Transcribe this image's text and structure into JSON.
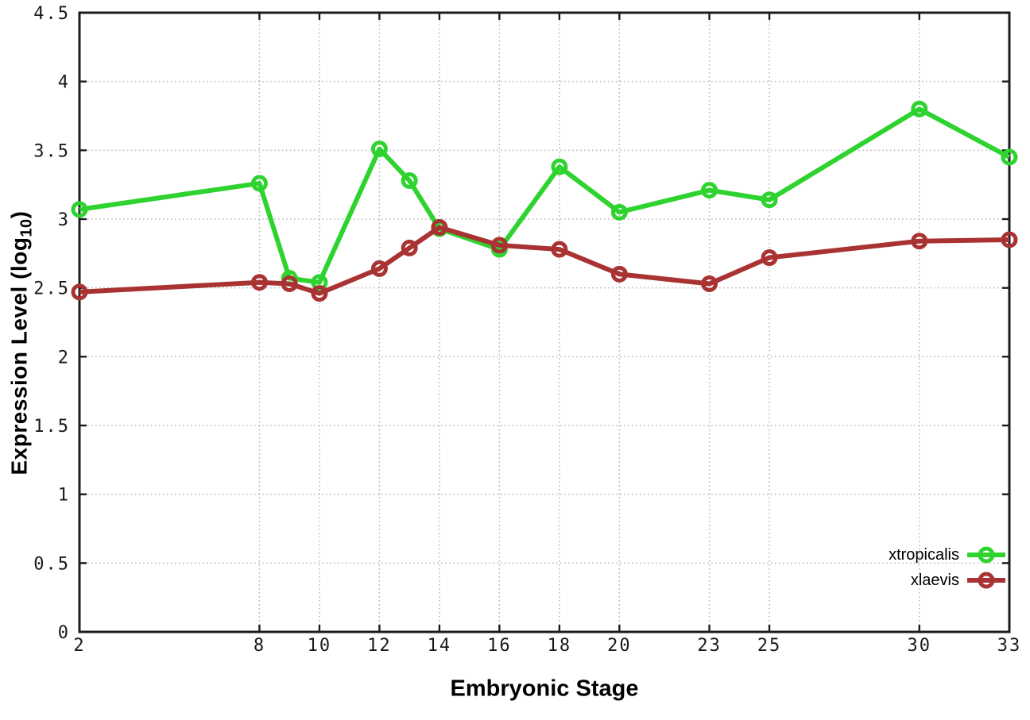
{
  "chart_data": {
    "type": "line",
    "title": "",
    "xlabel": "Embryonic Stage",
    "ylabel": "Expression Level (log10)",
    "ylabel_parts": {
      "pre": "Expression Level (log",
      "sub": "10",
      "post": ")"
    },
    "xlim": [
      2,
      33
    ],
    "ylim": [
      0,
      4.5
    ],
    "x_ticks": [
      2,
      8,
      10,
      12,
      14,
      16,
      18,
      20,
      23,
      25,
      30,
      33
    ],
    "x_tick_labels": [
      "2",
      "8",
      "10",
      "12",
      "14",
      "16",
      "18",
      "20",
      "23",
      "25",
      "30",
      "33"
    ],
    "y_ticks": [
      0,
      0.5,
      1,
      1.5,
      2,
      2.5,
      3,
      3.5,
      4,
      4.5
    ],
    "y_tick_labels": [
      "0",
      "0.5",
      "1",
      "1.5",
      "2",
      "2.5",
      "3",
      "3.5",
      "4",
      "4.5"
    ],
    "grid": true,
    "legend_position": "inside bottom-right",
    "x": [
      2,
      8,
      9,
      10,
      12,
      13,
      14,
      16,
      18,
      20,
      23,
      25,
      30,
      33
    ],
    "series": [
      {
        "name": "xtropicalis",
        "color": "#2fd32f",
        "marker": "open-circle",
        "values": [
          3.07,
          3.26,
          2.57,
          2.54,
          3.51,
          3.28,
          2.93,
          2.78,
          3.38,
          3.05,
          3.21,
          3.14,
          3.8,
          3.45
        ]
      },
      {
        "name": "xlaevis",
        "color": "#a93232",
        "marker": "open-circle",
        "values": [
          2.47,
          2.54,
          2.53,
          2.46,
          2.64,
          2.79,
          2.94,
          2.81,
          2.78,
          2.6,
          2.53,
          2.72,
          2.84,
          2.85
        ]
      }
    ],
    "colors": {
      "grid": "#b8b8b8",
      "axis": "#1c1c1c",
      "tick_label": "#1a1a1a",
      "background": "#ffffff"
    }
  }
}
